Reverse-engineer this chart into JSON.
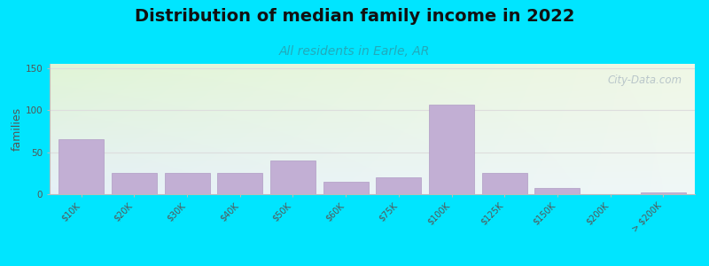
{
  "title": "Distribution of median family income in 2022",
  "subtitle": "All residents in Earle, AR",
  "ylabel": "families",
  "categories": [
    "$10K",
    "$20K",
    "$30K",
    "$40K",
    "$50K",
    "$60K",
    "$75K",
    "$100K",
    "$125K",
    "$150K",
    "$200K",
    "> $200K"
  ],
  "values": [
    65,
    25,
    25,
    25,
    40,
    15,
    20,
    107,
    25,
    7,
    0,
    2
  ],
  "bar_color": "#c2afd4",
  "bar_edge_color": "#b09cc4",
  "background_outer": "#00e5ff",
  "bg_topleft": [
    0.88,
    0.96,
    0.84
  ],
  "bg_topright": [
    0.94,
    0.97,
    0.9
  ],
  "bg_bottomleft": [
    0.9,
    0.94,
    0.97
  ],
  "bg_bottomright": [
    0.94,
    0.97,
    0.97
  ],
  "title_fontsize": 14,
  "subtitle_fontsize": 10,
  "subtitle_color": "#22aabb",
  "ylabel_fontsize": 9,
  "tick_fontsize": 7,
  "yticks": [
    0,
    50,
    100,
    150
  ],
  "ylim": [
    0,
    155
  ],
  "watermark_text": "City-Data.com",
  "watermark_color": "#b0bec5",
  "gridline_color": "#dddddd"
}
